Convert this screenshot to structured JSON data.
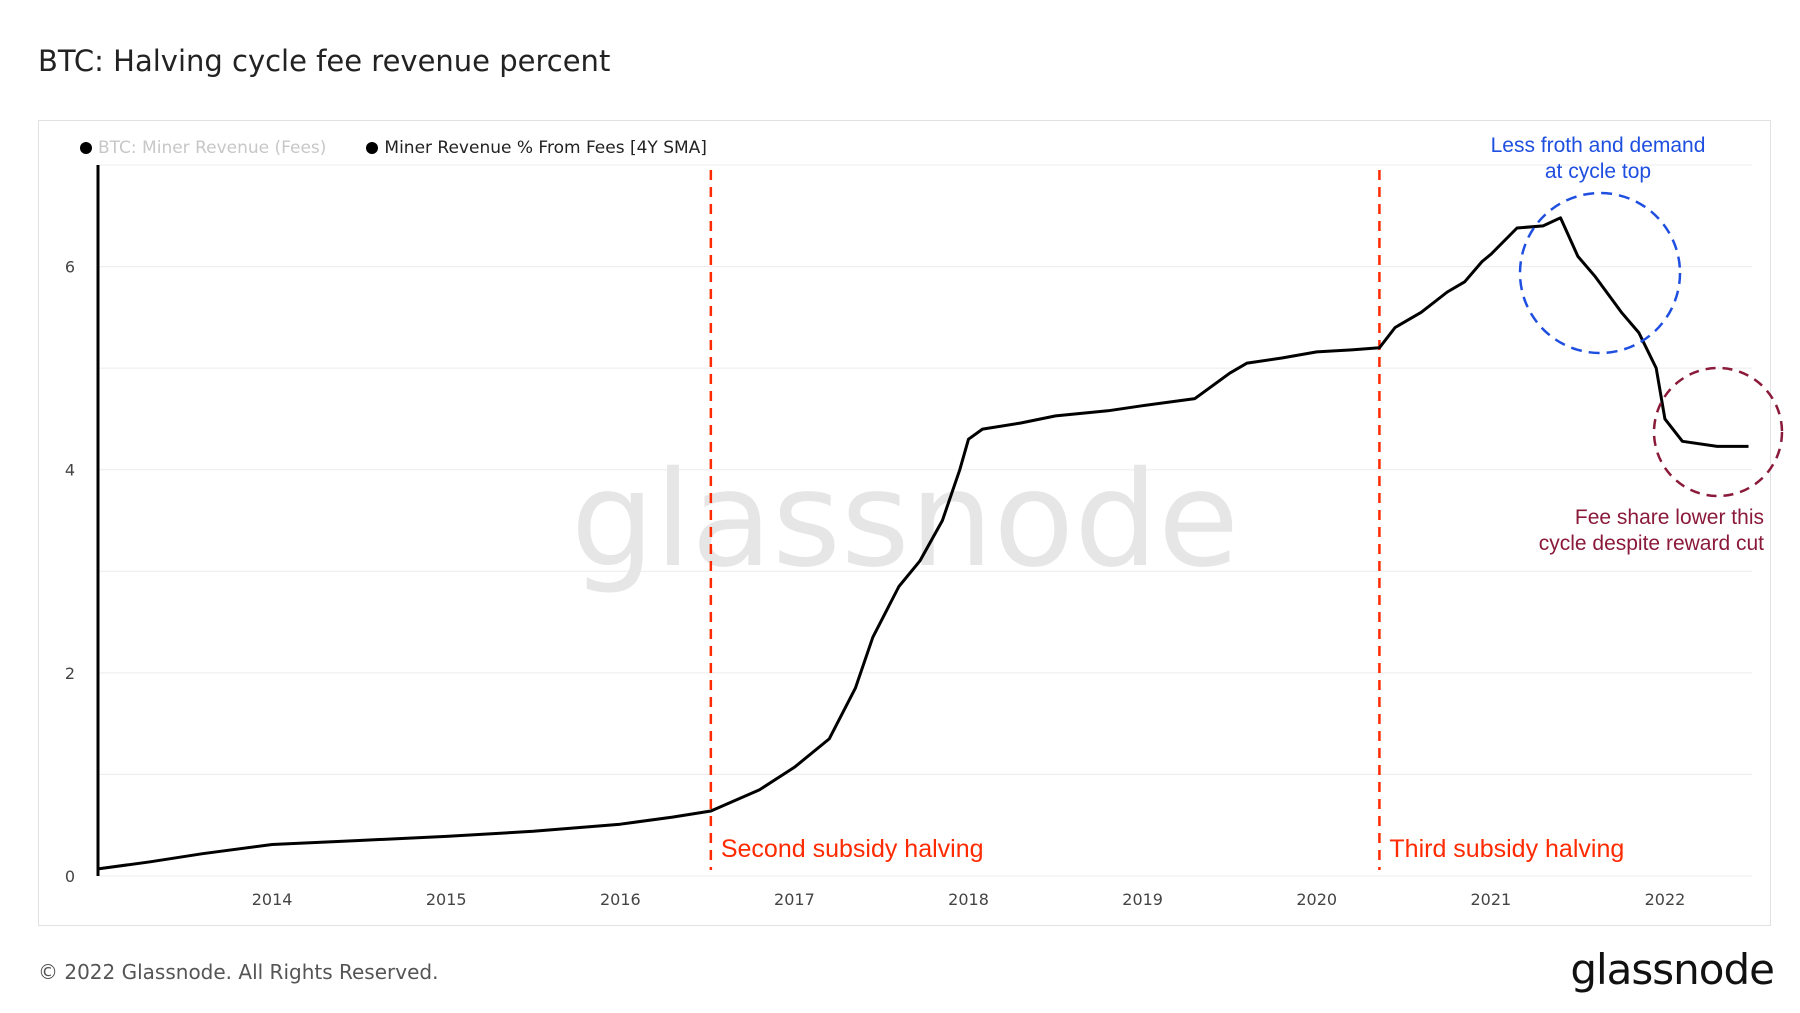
{
  "title": "BTC: Halving cycle fee revenue percent",
  "legend": [
    {
      "label": "BTC: Miner Revenue (Fees)",
      "active": false
    },
    {
      "label": "Miner Revenue % From Fees [4Y SMA]",
      "active": true
    }
  ],
  "watermark": "glassnode",
  "footer": {
    "copyright": "© 2022 Glassnode. All Rights Reserved.",
    "logo": "glassnode"
  },
  "colors": {
    "line": "#000000",
    "halving": "#ff2a00",
    "blue_annotation": "#1f4fe0",
    "red_annotation": "#8b1a3a",
    "grid": "#ececec"
  },
  "annotations": [
    {
      "text_lines": [
        "Less froth and demand",
        "at cycle top"
      ],
      "color": "#1f4fe0"
    },
    {
      "text_lines": [
        "Fee share lower this",
        "cycle despite reward cut"
      ],
      "color": "#8b1a3a"
    }
  ],
  "halvings": [
    {
      "date": 2016.52,
      "label": "Second subsidy halving"
    },
    {
      "date": 2020.36,
      "label": "Third subsidy halving"
    }
  ],
  "chart_data": {
    "type": "line",
    "title": "BTC: Halving cycle fee revenue percent",
    "xlabel": "",
    "ylabel": "",
    "xlim": [
      2013.0,
      2022.5
    ],
    "ylim": [
      0,
      7
    ],
    "x_ticks": [
      2014,
      2015,
      2016,
      2017,
      2018,
      2019,
      2020,
      2021,
      2022
    ],
    "y_ticks": [
      0,
      2,
      4,
      6
    ],
    "grid": true,
    "series": [
      {
        "name": "Miner Revenue % From Fees [4Y SMA]",
        "x": [
          2013.0,
          2013.3,
          2013.6,
          2014.0,
          2014.5,
          2015.0,
          2015.5,
          2016.0,
          2016.3,
          2016.52,
          2016.8,
          2017.0,
          2017.2,
          2017.35,
          2017.45,
          2017.6,
          2017.72,
          2017.85,
          2017.95,
          2018.0,
          2018.08,
          2018.3,
          2018.5,
          2018.8,
          2019.0,
          2019.3,
          2019.5,
          2019.6,
          2019.8,
          2020.0,
          2020.2,
          2020.36,
          2020.45,
          2020.6,
          2020.75,
          2020.85,
          2020.95,
          2021.0,
          2021.15,
          2021.3,
          2021.4,
          2021.5,
          2021.6,
          2021.75,
          2021.85,
          2021.95,
          2022.0,
          2022.1,
          2022.3,
          2022.48
        ],
        "values": [
          0.07,
          0.14,
          0.22,
          0.31,
          0.35,
          0.39,
          0.44,
          0.51,
          0.58,
          0.64,
          0.85,
          1.07,
          1.35,
          1.85,
          2.35,
          2.85,
          3.1,
          3.5,
          4.0,
          4.3,
          4.4,
          4.46,
          4.53,
          4.58,
          4.63,
          4.7,
          4.95,
          5.05,
          5.1,
          5.16,
          5.18,
          5.2,
          5.4,
          5.55,
          5.75,
          5.85,
          6.05,
          6.12,
          6.38,
          6.4,
          6.48,
          6.1,
          5.9,
          5.55,
          5.35,
          5.0,
          4.5,
          4.28,
          4.23,
          4.23
        ]
      }
    ]
  }
}
